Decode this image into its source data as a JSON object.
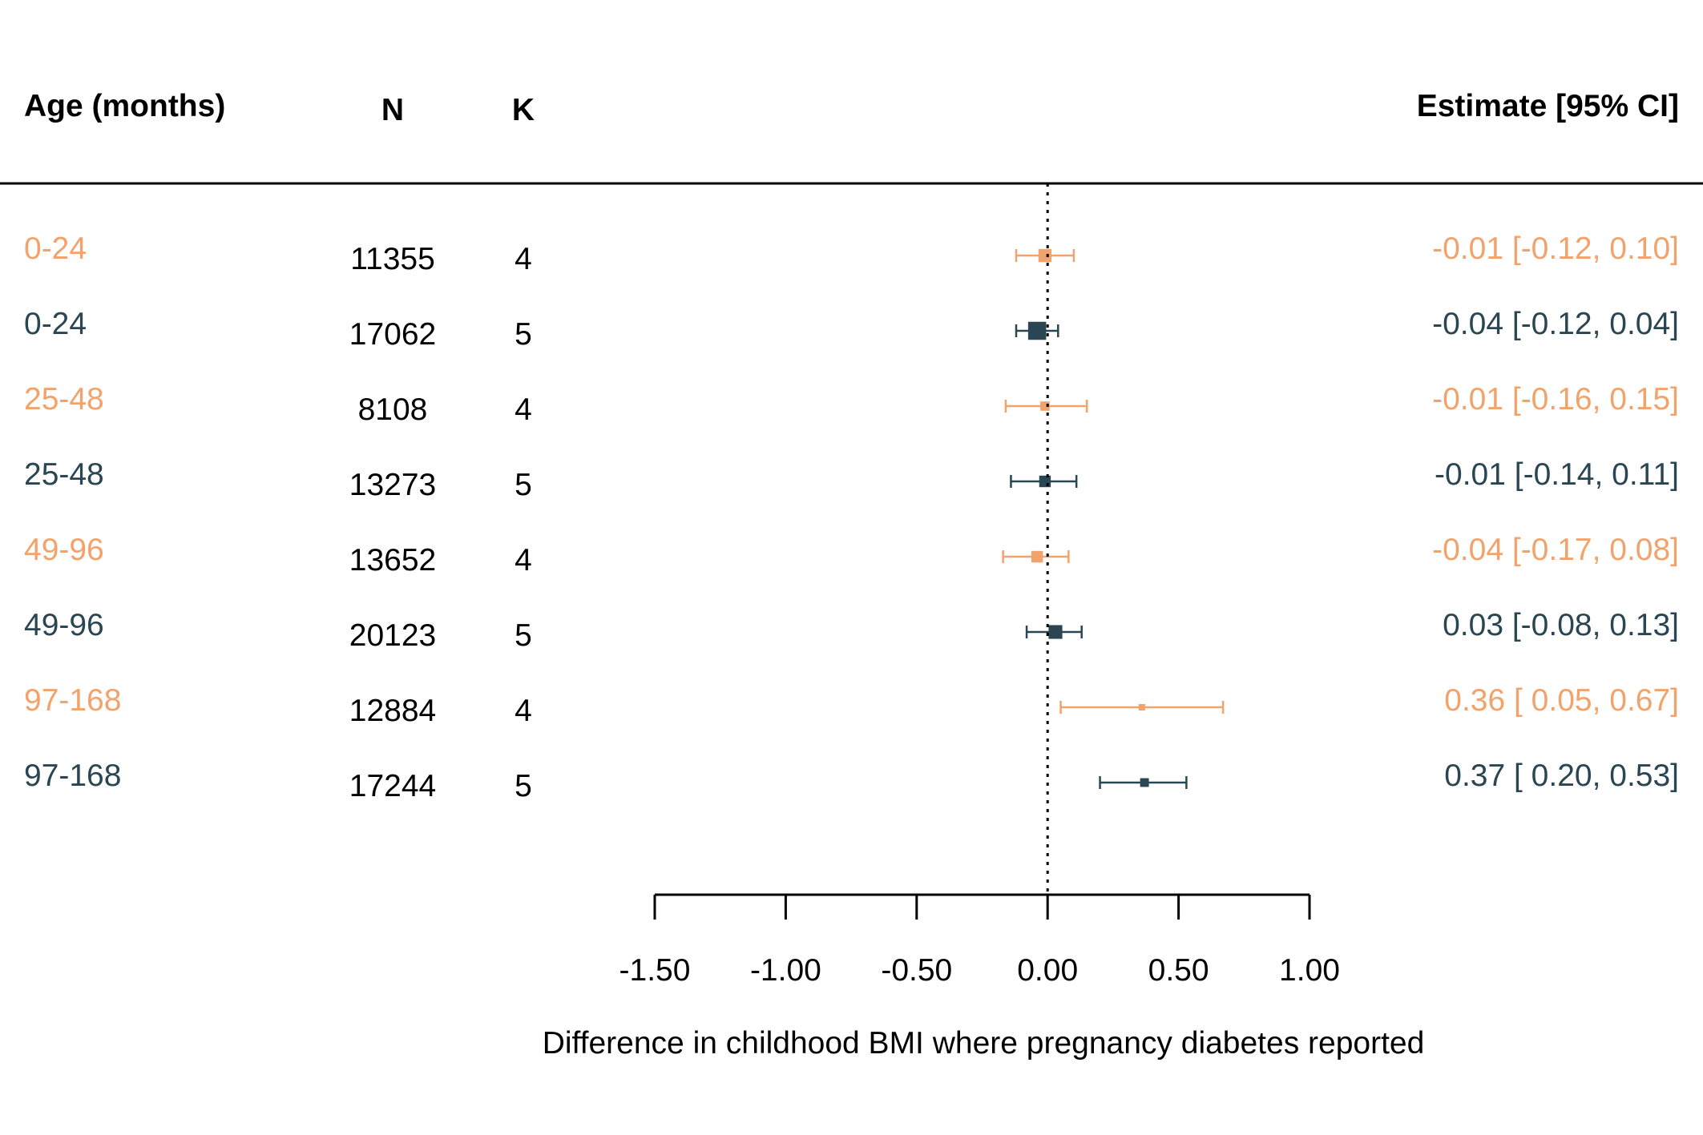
{
  "chart_data": {
    "type": "forest",
    "columns": {
      "age": "Age (months)",
      "n": "N",
      "k": "K",
      "estimate": "Estimate [95% CI]"
    },
    "xlabel": "Difference in childhood BMI where pregnancy diabetes reported",
    "xlim": [
      -1.5,
      1.0
    ],
    "ticks": [
      "-1.50",
      "-1.00",
      "-0.50",
      "0.00",
      "0.50",
      "1.00"
    ],
    "tick_values": [
      -1.5,
      -1.0,
      -0.5,
      0.0,
      0.5,
      1.0
    ],
    "reference_line": 0,
    "colors": {
      "orange": "#F2A36B",
      "navy": "#294652"
    },
    "rows": [
      {
        "age": "0-24",
        "n": "11355",
        "k": "4",
        "estimate": -0.01,
        "lower": -0.12,
        "upper": 0.1,
        "label": "-0.01 [-0.12, 0.10]",
        "color": "#F2A36B"
      },
      {
        "age": "0-24",
        "n": "17062",
        "k": "5",
        "estimate": -0.04,
        "lower": -0.12,
        "upper": 0.04,
        "label": "-0.04 [-0.12, 0.04]",
        "color": "#294652"
      },
      {
        "age": "25-48",
        "n": "8108",
        "k": "4",
        "estimate": -0.01,
        "lower": -0.16,
        "upper": 0.15,
        "label": "-0.01 [-0.16, 0.15]",
        "color": "#F2A36B"
      },
      {
        "age": "25-48",
        "n": "13273",
        "k": "5",
        "estimate": -0.01,
        "lower": -0.14,
        "upper": 0.11,
        "label": "-0.01 [-0.14, 0.11]",
        "color": "#294652"
      },
      {
        "age": "49-96",
        "n": "13652",
        "k": "4",
        "estimate": -0.04,
        "lower": -0.17,
        "upper": 0.08,
        "label": "-0.04 [-0.17, 0.08]",
        "color": "#F2A36B"
      },
      {
        "age": "49-96",
        "n": "20123",
        "k": "5",
        "estimate": 0.03,
        "lower": -0.08,
        "upper": 0.13,
        "label": "0.03 [-0.08, 0.13]",
        "color": "#294652"
      },
      {
        "age": "97-168",
        "n": "12884",
        "k": "4",
        "estimate": 0.36,
        "lower": 0.05,
        "upper": 0.67,
        "label": "0.36 [ 0.05, 0.67]",
        "color": "#F2A36B"
      },
      {
        "age": "97-168",
        "n": "17244",
        "k": "5",
        "estimate": 0.37,
        "lower": 0.2,
        "upper": 0.53,
        "label": "0.37 [ 0.20, 0.53]",
        "color": "#294652"
      }
    ]
  }
}
